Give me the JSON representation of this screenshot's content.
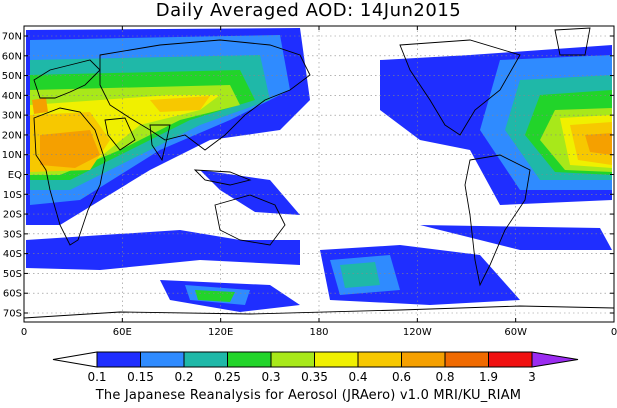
{
  "title": "Daily Averaged AOD: 14Jun2015",
  "map": {
    "lat_labels": [
      "70N",
      "60N",
      "50N",
      "40N",
      "30N",
      "20N",
      "10N",
      "EQ",
      "10S",
      "20S",
      "30S",
      "40S",
      "50S",
      "60S",
      "70S"
    ],
    "lon_labels": [
      "0",
      "60E",
      "120E",
      "180",
      "120W",
      "60W",
      "0"
    ]
  },
  "legend": {
    "levels": [
      "0.1",
      "0.15",
      "0.2",
      "0.25",
      "0.3",
      "0.35",
      "0.4",
      "0.6",
      "0.8",
      "1.9",
      "3"
    ],
    "colors": [
      "#1f2eff",
      "#2f8bff",
      "#1fb8a8",
      "#22d42a",
      "#a8e81a",
      "#f0f000",
      "#f7c800",
      "#f5a000",
      "#f06a00",
      "#f01010",
      "#9b2cf0"
    ]
  },
  "credit": "The Japanese Reanalysis for Aerosol (JRAero) v1.0 MRI/KU_RIAM"
}
